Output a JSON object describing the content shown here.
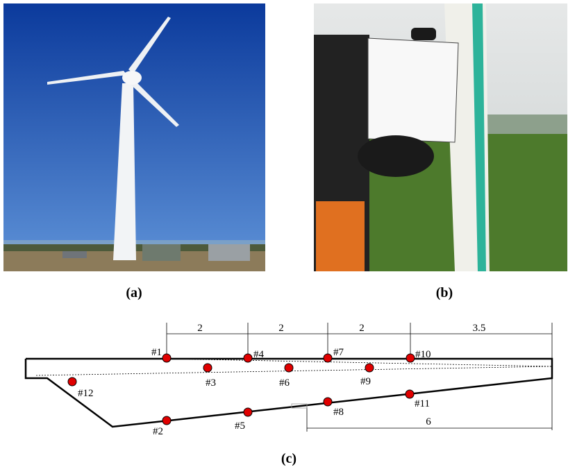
{
  "panels": [
    "(a)",
    "(b)",
    "(c)"
  ],
  "dimensions": [
    "2",
    "2",
    "2",
    "3.5",
    "6"
  ],
  "sensors": [
    "#1",
    "#2",
    "#3",
    "#4",
    "#5",
    "#6",
    "#7",
    "#8",
    "#9",
    "#10",
    "#11",
    "#12"
  ]
}
